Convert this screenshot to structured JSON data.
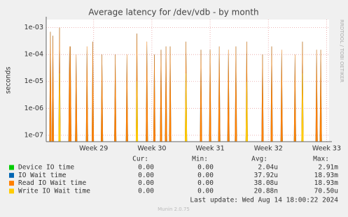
{
  "chart_data": {
    "type": "line",
    "title": "Average latency for /dev/vdb - by month",
    "y_label": "seconds",
    "side_text": "RRDTOOL / TOBI OETIKER",
    "yscale": "log",
    "ylim": [
      5.8e-08,
      0.002
    ],
    "yticks": [
      {
        "value": 0.001,
        "label": "1e-03"
      },
      {
        "value": 0.0001,
        "label": "1e-04"
      },
      {
        "value": 1e-05,
        "label": "1e-05"
      },
      {
        "value": 1e-06,
        "label": "1e-06"
      },
      {
        "value": 1e-07,
        "label": "1e-07"
      }
    ],
    "xlim": [
      0,
      34
    ],
    "xticks": [
      {
        "value": 5.7,
        "label": "Week 29"
      },
      {
        "value": 12.7,
        "label": "Week 30"
      },
      {
        "value": 19.7,
        "label": "Week 31"
      },
      {
        "value": 26.7,
        "label": "Week 32"
      },
      {
        "value": 33.7,
        "label": "Week 33"
      }
    ],
    "grid": true,
    "x": [
      0.5,
      0.8,
      1.6,
      2.8,
      2.9,
      3.6,
      4.9,
      5.6,
      6.7,
      8.3,
      9.7,
      10.9,
      12.1,
      13.0,
      13.8,
      14.4,
      14.9,
      16.8,
      18.6,
      19.7,
      20.8,
      21.9,
      22.8,
      24.1,
      26.0,
      27.1,
      28.3,
      29.9,
      30.8,
      32.5,
      33.0
    ],
    "legend_headers": [
      "Cur:",
      "Min:",
      "Avg:",
      "Max:"
    ],
    "series": [
      {
        "name": "Device IO time",
        "color": "#00cc00",
        "values": [
          1e-06,
          2e-06,
          1e-06,
          1e-06,
          1e-06,
          2e-06,
          1e-06,
          5e-07,
          1e-06,
          2e-06,
          1e-06,
          2e-06,
          1e-06,
          1e-06,
          2e-06,
          1e-06,
          1e-06,
          2e-06,
          1e-06,
          1e-06,
          1e-06,
          2e-06,
          1e-06,
          1e-06,
          1e-06,
          2e-06,
          1e-06,
          1e-06,
          2e-06,
          1e-06,
          1e-06
        ],
        "cur": "0.00",
        "min": "0.00",
        "avg": "2.04u",
        "max": "2.91m"
      },
      {
        "name": "IO Wait time",
        "color": "#0066b3",
        "values": [
          0.0007,
          0.0005,
          0.001,
          0.0002,
          0.0002,
          0.0001,
          0.0002,
          0.0003,
          0.0001,
          0.0001,
          0.0001,
          0.0006,
          0.0003,
          0.0001,
          0.00015,
          0.0002,
          0.0002,
          0.0003,
          0.00015,
          0.00015,
          0.0002,
          0.00015,
          0.0002,
          0.0003,
          0.0001,
          0.0002,
          0.00015,
          0.0001,
          0.0003,
          0.00015,
          0.00015
        ],
        "cur": "0.00",
        "min": "0.00",
        "avg": "37.92u",
        "max": "18.93m"
      },
      {
        "name": "Read IO Wait time",
        "color": "#ff8000",
        "values": [
          0.0007,
          0.0005,
          0.001,
          0.0002,
          0.0002,
          0.0001,
          0.0002,
          0.0003,
          0.0001,
          0.0001,
          0.0001,
          0.0006,
          0.0003,
          0.0001,
          0.00015,
          0.0002,
          0.0002,
          0.0003,
          0.00015,
          0.00015,
          0.0002,
          0.00015,
          0.0002,
          0.0003,
          0.0001,
          0.0002,
          0.00015,
          0.0001,
          0.0003,
          0.00015,
          0.00015
        ],
        "cur": "0.00",
        "min": "0.00",
        "avg": "38.08u",
        "max": "18.93m"
      },
      {
        "name": "Write IO Wait time",
        "color": "#ffcc00",
        "values": [
          null,
          null,
          2e-05,
          null,
          null,
          null,
          null,
          null,
          null,
          null,
          null,
          1e-05,
          null,
          null,
          null,
          null,
          null,
          2e-05,
          null,
          null,
          null,
          null,
          null,
          1e-05,
          null,
          null,
          null,
          null,
          2e-05,
          null,
          null
        ],
        "cur": "0.00",
        "min": "0.00",
        "avg": "20.88n",
        "max": "70.50u"
      }
    ],
    "last_update": "Last update:  Wed Aug 14 18:00:22 2024",
    "footer": "Munin 2.0.75"
  }
}
